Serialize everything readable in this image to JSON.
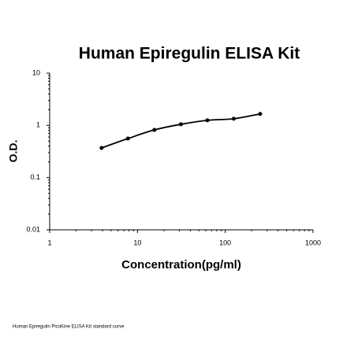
{
  "chart_data": {
    "type": "scatter",
    "title": "Human Epiregulin ELISA Kit",
    "x_label": "Concentration(pg/ml)",
    "y_label": "O.D.",
    "footnote": "Human Epiregulin PicoKine ELISA Kit standard curve",
    "x": [
      3.9,
      7.8,
      15.6,
      31.25,
      62.5,
      125,
      250
    ],
    "series": [
      {
        "color": "#000000",
        "values": [
          0.37,
          0.56,
          0.82,
          1.05,
          1.25,
          1.34,
          1.66
        ]
      }
    ],
    "xlim": [
      1,
      1000
    ],
    "xticks": [
      1,
      10,
      100,
      1000
    ],
    "ylim": [
      0.01,
      10
    ],
    "yticks": [
      0.01,
      0.1,
      1,
      10
    ],
    "xscale": "log",
    "yscale": "log",
    "fit_curve": true
  }
}
